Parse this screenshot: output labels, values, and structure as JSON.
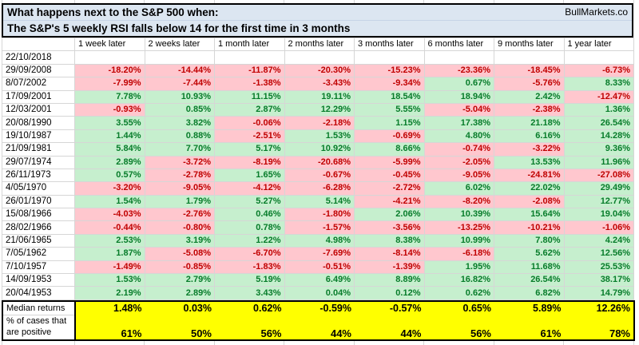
{
  "header": {
    "title_line1": "What happens next to the S&P 500 when:",
    "title_line2": "The S&P's 5 weekly RSI falls below 14 for the first time in 3 months",
    "brand": "BullMarkets.co"
  },
  "chart_data": {
    "type": "table",
    "title": "What happens next to the S&P 500 when: The S&P's 5 weekly RSI falls below 14 for the first time in 3 months",
    "columns": [
      "1 week later",
      "2 weeks later",
      "1 month later",
      "2 months later",
      "3 months later",
      "6 months later",
      "9 months later",
      "1 year later"
    ],
    "rows": [
      {
        "date": "22/10/2018",
        "values": [
          null,
          null,
          null,
          null,
          null,
          null,
          null,
          null
        ]
      },
      {
        "date": "29/09/2008",
        "values": [
          "-18.20%",
          "-14.44%",
          "-11.87%",
          "-20.30%",
          "-15.23%",
          "-23.36%",
          "-18.45%",
          "-6.73%"
        ]
      },
      {
        "date": "8/07/2002",
        "values": [
          "-7.99%",
          "-7.44%",
          "-1.38%",
          "-3.43%",
          "-9.34%",
          "0.67%",
          "-5.76%",
          "8.33%"
        ]
      },
      {
        "date": "17/09/2001",
        "values": [
          "7.78%",
          "10.93%",
          "11.15%",
          "19.11%",
          "18.54%",
          "18.94%",
          "2.42%",
          "-12.47%"
        ]
      },
      {
        "date": "12/03/2001",
        "values": [
          "-0.93%",
          "0.85%",
          "2.87%",
          "12.29%",
          "5.55%",
          "-5.04%",
          "-2.38%",
          "1.36%"
        ]
      },
      {
        "date": "20/08/1990",
        "values": [
          "3.55%",
          "3.82%",
          "-0.06%",
          "-2.18%",
          "1.15%",
          "17.38%",
          "21.18%",
          "26.54%"
        ]
      },
      {
        "date": "19/10/1987",
        "values": [
          "1.44%",
          "0.88%",
          "-2.51%",
          "1.53%",
          "-0.69%",
          "4.80%",
          "6.16%",
          "14.28%"
        ]
      },
      {
        "date": "21/09/1981",
        "values": [
          "5.84%",
          "7.70%",
          "5.17%",
          "10.92%",
          "8.66%",
          "-0.74%",
          "-3.22%",
          "9.36%"
        ]
      },
      {
        "date": "29/07/1974",
        "values": [
          "2.89%",
          "-3.72%",
          "-8.19%",
          "-20.68%",
          "-5.99%",
          "-2.05%",
          "13.53%",
          "11.96%"
        ]
      },
      {
        "date": "26/11/1973",
        "values": [
          "0.57%",
          "-2.78%",
          "1.65%",
          "-0.67%",
          "-0.45%",
          "-9.05%",
          "-24.81%",
          "-27.08%"
        ]
      },
      {
        "date": "4/05/1970",
        "values": [
          "-3.20%",
          "-9.05%",
          "-4.12%",
          "-6.28%",
          "-2.72%",
          "6.02%",
          "22.02%",
          "29.49%"
        ]
      },
      {
        "date": "26/01/1970",
        "values": [
          "1.54%",
          "1.79%",
          "5.27%",
          "5.14%",
          "-4.21%",
          "-8.20%",
          "-2.08%",
          "12.77%"
        ]
      },
      {
        "date": "15/08/1966",
        "values": [
          "-4.03%",
          "-2.76%",
          "0.46%",
          "-1.80%",
          "2.06%",
          "10.39%",
          "15.64%",
          "19.04%"
        ]
      },
      {
        "date": "28/02/1966",
        "values": [
          "-0.44%",
          "-0.80%",
          "0.78%",
          "-1.57%",
          "-3.56%",
          "-13.25%",
          "-10.21%",
          "-1.06%"
        ]
      },
      {
        "date": "21/06/1965",
        "values": [
          "2.53%",
          "3.19%",
          "1.22%",
          "4.98%",
          "8.38%",
          "10.99%",
          "7.80%",
          "4.24%"
        ]
      },
      {
        "date": "7/05/1962",
        "values": [
          "1.87%",
          "-5.08%",
          "-6.70%",
          "-7.69%",
          "-8.14%",
          "-6.18%",
          "5.62%",
          "12.56%"
        ]
      },
      {
        "date": "7/10/1957",
        "values": [
          "-1.49%",
          "-0.85%",
          "-1.83%",
          "-0.51%",
          "-1.39%",
          "1.95%",
          "11.68%",
          "25.53%"
        ]
      },
      {
        "date": "14/09/1953",
        "values": [
          "1.53%",
          "2.79%",
          "5.19%",
          "6.49%",
          "8.89%",
          "16.82%",
          "26.54%",
          "38.17%"
        ]
      },
      {
        "date": "20/04/1953",
        "values": [
          "2.19%",
          "2.89%",
          "3.43%",
          "0.04%",
          "0.12%",
          "0.62%",
          "6.82%",
          "14.79%"
        ]
      }
    ],
    "summary": {
      "median_label": "Median returns",
      "median_values": [
        "1.48%",
        "0.03%",
        "0.62%",
        "-0.59%",
        "-0.57%",
        "0.65%",
        "5.89%",
        "12.26%"
      ],
      "percent_label": "% of cases that are positive",
      "percent_values": [
        "61%",
        "50%",
        "56%",
        "44%",
        "44%",
        "56%",
        "61%",
        "78%"
      ]
    }
  },
  "colors": {
    "positive_bg": "#c6efce",
    "positive_text": "#077c2a",
    "negative_bg": "#ffc7ce",
    "negative_text": "#c00000",
    "title_bg": "#dce6f1",
    "summary_bg": "#ffff00",
    "grid": "#d6d6d6"
  }
}
